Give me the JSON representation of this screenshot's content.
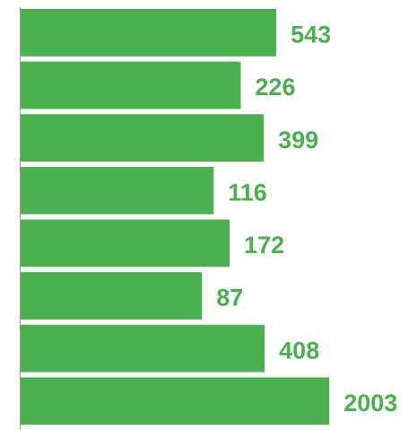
{
  "chart_data": {
    "type": "barh",
    "values": [
      543,
      226,
      399,
      116,
      172,
      87,
      408,
      2003
    ],
    "color": "#4caf50",
    "xlim": [
      1,
      10000
    ],
    "xlog": true
  }
}
